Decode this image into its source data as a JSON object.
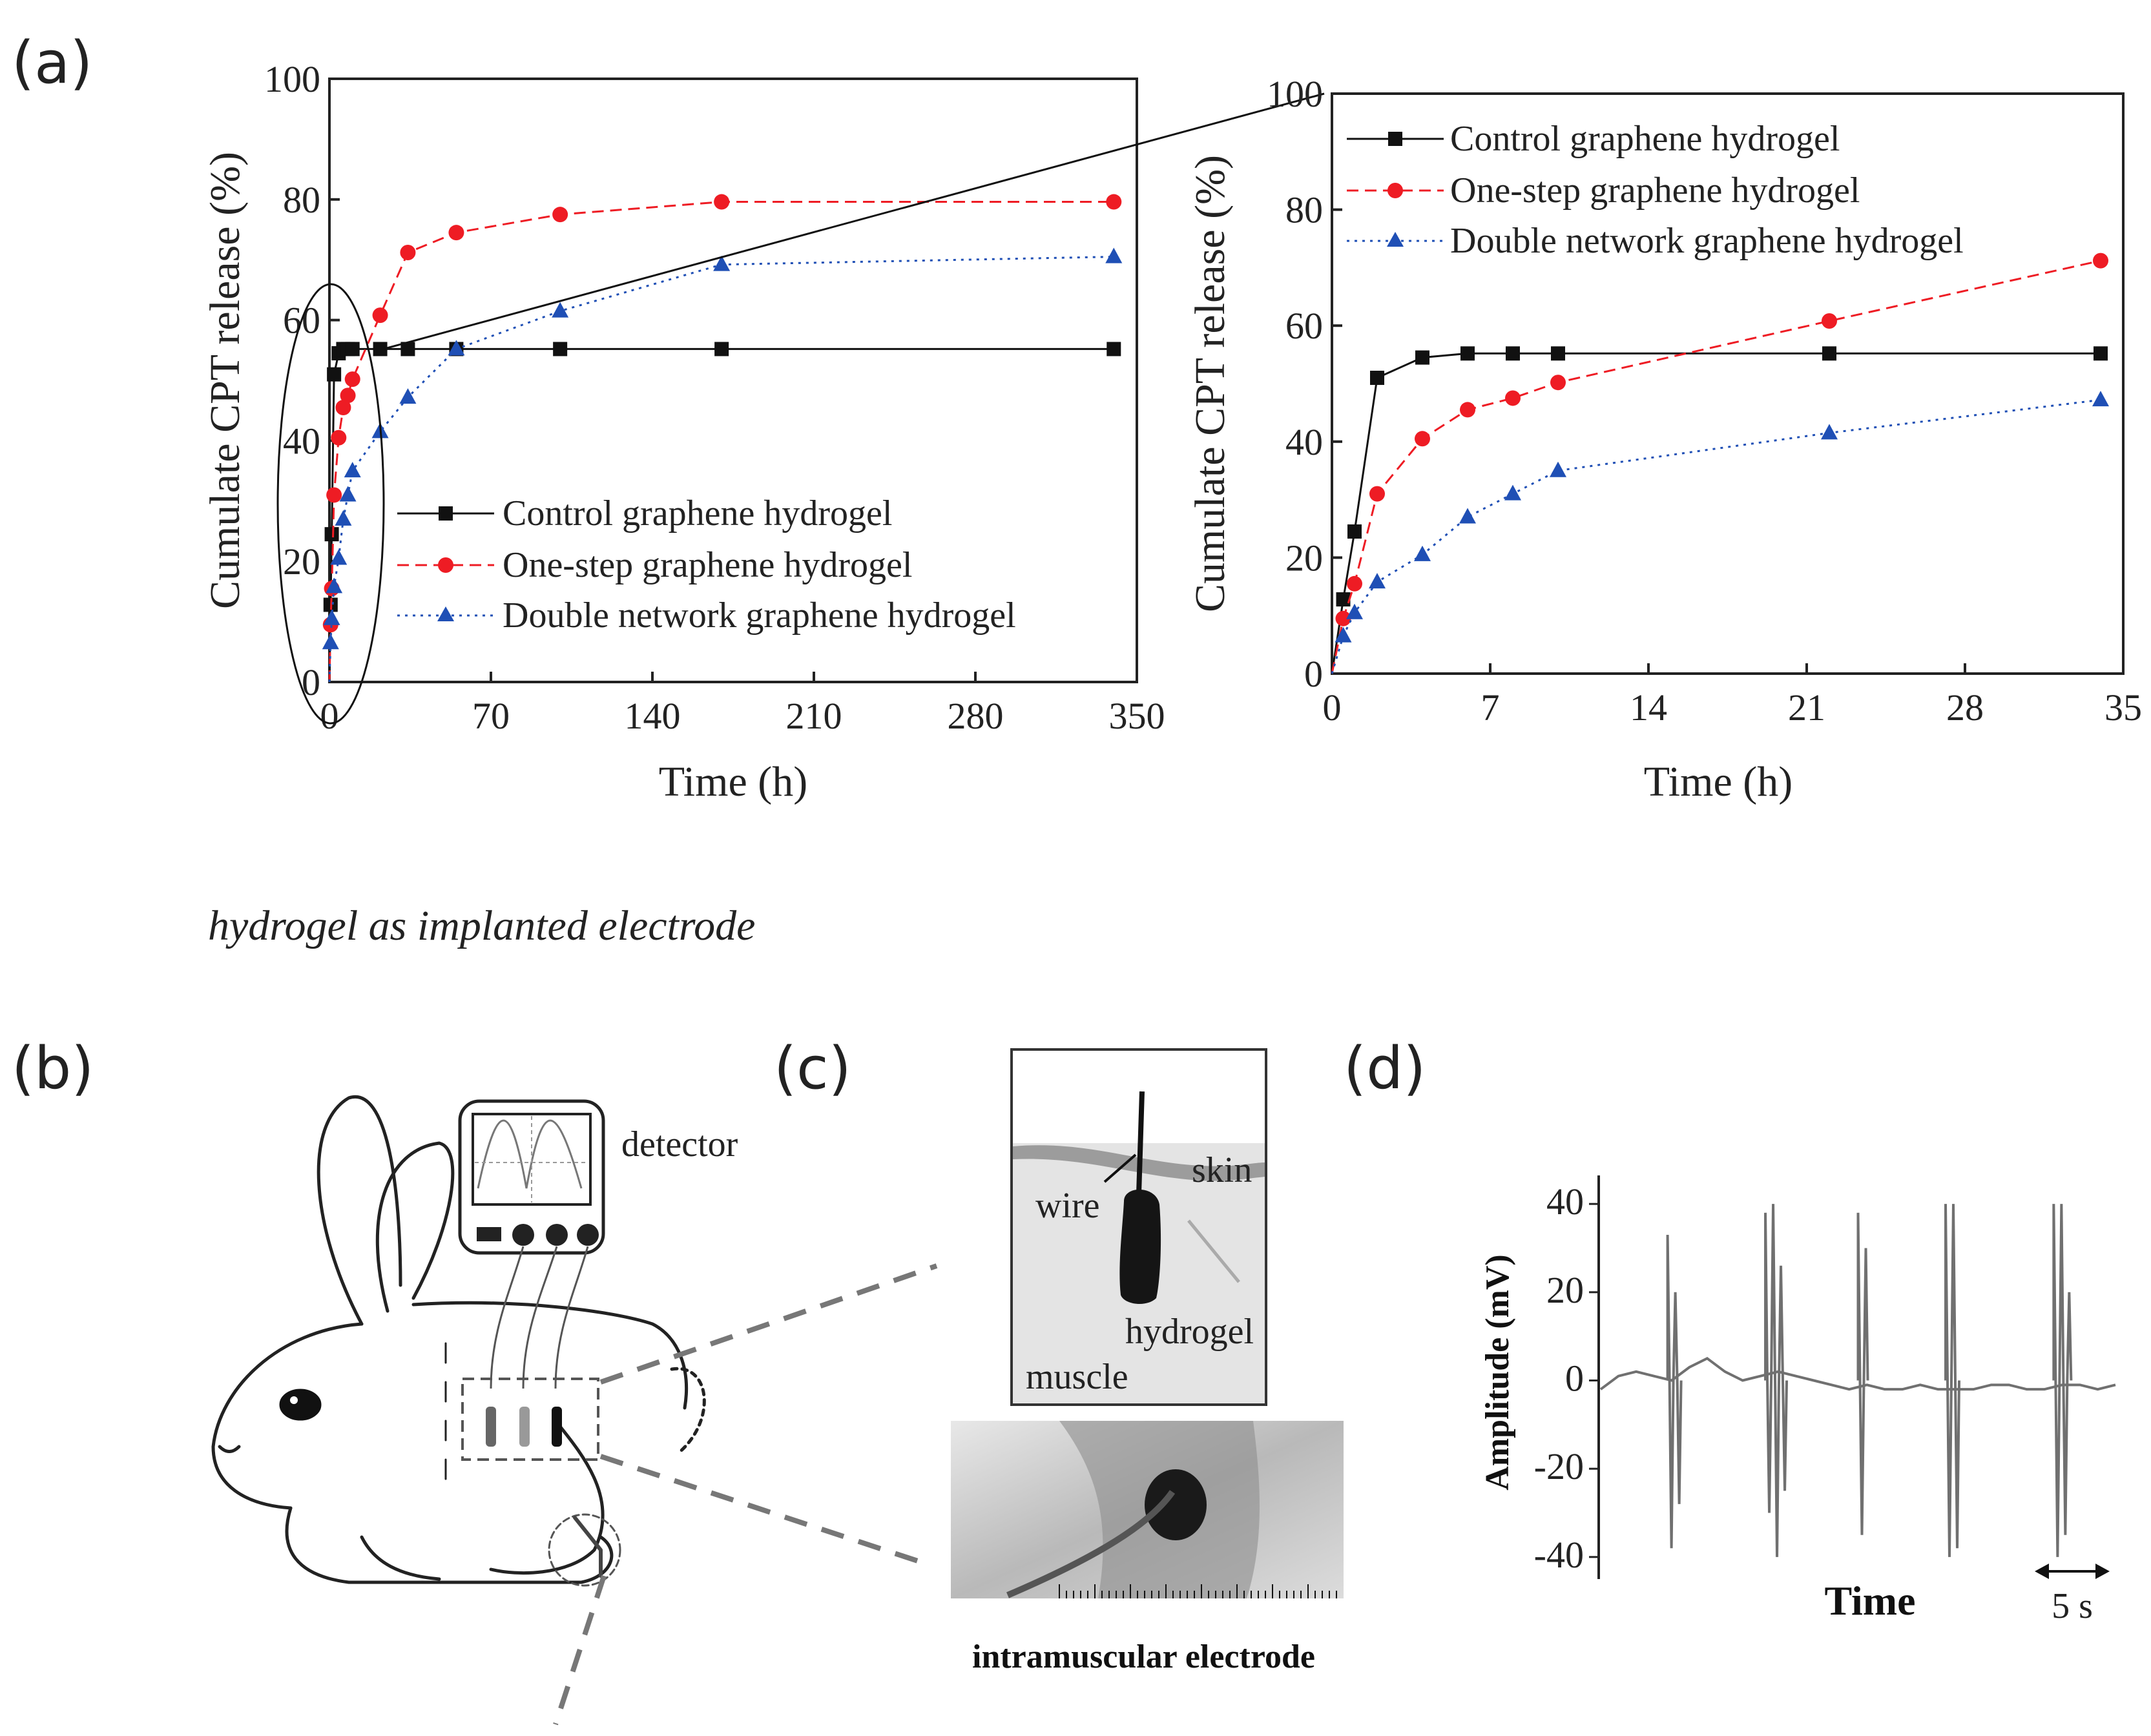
{
  "labels": {
    "a": "(a)",
    "b": "(b)",
    "c": "(c)",
    "d": "(d)",
    "caption_italic": "hydrogel as implanted  electrode",
    "intramuscular": "intramuscular electrode",
    "detector": "detector",
    "skin": "skin",
    "wire": "wire",
    "hydrogel": "hydrogel",
    "muscle": "muscle"
  },
  "colors": {
    "control": "#111111",
    "onestep": "#ee1c24",
    "double": "#1f4fb5",
    "signal": "#707070"
  },
  "chart_data": [
    {
      "type": "line",
      "id": "main",
      "xlabel": "Time (h)",
      "ylabel": "Cumulate CPT release (%)",
      "xlim": [
        0,
        350
      ],
      "ylim": [
        0,
        100
      ],
      "xticks": [
        "0",
        "70",
        "140",
        "210",
        "280",
        "350"
      ],
      "yticks": [
        "0",
        "20",
        "40",
        "60",
        "80",
        "100"
      ],
      "series": [
        {
          "name": "Control graphene hydrogel",
          "x": [
            0,
            0.5,
            1,
            2,
            4,
            6,
            8,
            10,
            22,
            34,
            55,
            100,
            170,
            340
          ],
          "y": [
            0,
            12.8,
            24.5,
            51,
            54.5,
            55.2,
            55.2,
            55.2,
            55.2,
            55.2,
            55.2,
            55.2,
            55.2,
            55.2
          ]
        },
        {
          "name": "One-step graphene hydrogel",
          "x": [
            0,
            0.5,
            1,
            2,
            4,
            6,
            8,
            10,
            22,
            34,
            55,
            100,
            170,
            340
          ],
          "y": [
            0,
            9.5,
            15.5,
            31,
            40.5,
            45.5,
            47.5,
            50.2,
            60.8,
            71.2,
            74.5,
            77.5,
            79.6,
            79.6
          ]
        },
        {
          "name": "Double network graphene hydrogel",
          "x": [
            0,
            0.5,
            1,
            2,
            4,
            6,
            8,
            10,
            22,
            34,
            55,
            100,
            170,
            340
          ],
          "y": [
            0,
            6.5,
            10.5,
            15.8,
            20.5,
            27,
            31,
            35,
            41.5,
            47.2,
            55.2,
            61.5,
            69.2,
            70.5
          ]
        }
      ]
    },
    {
      "type": "line",
      "id": "inset",
      "xlabel": "Time (h)",
      "ylabel": "Cumulate CPT release (%)",
      "xlim": [
        0,
        35
      ],
      "ylim": [
        0,
        100
      ],
      "xticks": [
        "0",
        "7",
        "14",
        "21",
        "28",
        "35"
      ],
      "yticks": [
        "0",
        "20",
        "40",
        "60",
        "80",
        "100"
      ],
      "series": [
        {
          "name": "Control graphene hydrogel",
          "x": [
            0,
            0.5,
            1,
            2,
            4,
            6,
            8,
            10,
            22,
            34
          ],
          "y": [
            0,
            12.8,
            24.5,
            51,
            54.5,
            55.2,
            55.2,
            55.2,
            55.2,
            55.2
          ]
        },
        {
          "name": "One-step graphene hydrogel",
          "x": [
            0,
            0.5,
            1,
            2,
            4,
            6,
            8,
            10,
            22,
            34
          ],
          "y": [
            0,
            9.5,
            15.5,
            31,
            40.5,
            45.5,
            47.5,
            50.2,
            60.8,
            71.2
          ]
        },
        {
          "name": "Double network graphene hydrogel",
          "x": [
            0,
            0.5,
            1,
            2,
            4,
            6,
            8,
            10,
            22,
            34
          ],
          "y": [
            0,
            6.5,
            10.5,
            15.8,
            20.5,
            27,
            31,
            35,
            41.5,
            47.2
          ]
        }
      ]
    },
    {
      "type": "line",
      "id": "emg",
      "xlabel": "Time",
      "ylabel": "Amplitude (mV)",
      "ylim": [
        -45,
        45
      ],
      "yticks": [
        "40",
        "20",
        "0",
        "-20",
        "-40"
      ],
      "scale_label": "5 s",
      "baseline_mV": [
        -2,
        1,
        2,
        1,
        0,
        3,
        5,
        2,
        0,
        1,
        2,
        1,
        0,
        -1,
        -2,
        -1,
        -2,
        -2,
        -1,
        -2,
        -2,
        -2,
        -1,
        -1,
        -2,
        -2,
        -1,
        -1,
        -2,
        -1
      ],
      "bursts": [
        {
          "t": 0.13,
          "peaks": [
            33,
            -38,
            20,
            -28
          ]
        },
        {
          "t": 0.32,
          "peaks": [
            38,
            -30,
            40,
            -40,
            26,
            -25
          ]
        },
        {
          "t": 0.5,
          "peaks": [
            38,
            -35,
            30
          ]
        },
        {
          "t": 0.67,
          "peaks": [
            40,
            -40,
            40,
            -38
          ]
        },
        {
          "t": 0.88,
          "peaks": [
            40,
            -40,
            40,
            -35,
            20
          ]
        }
      ]
    }
  ]
}
